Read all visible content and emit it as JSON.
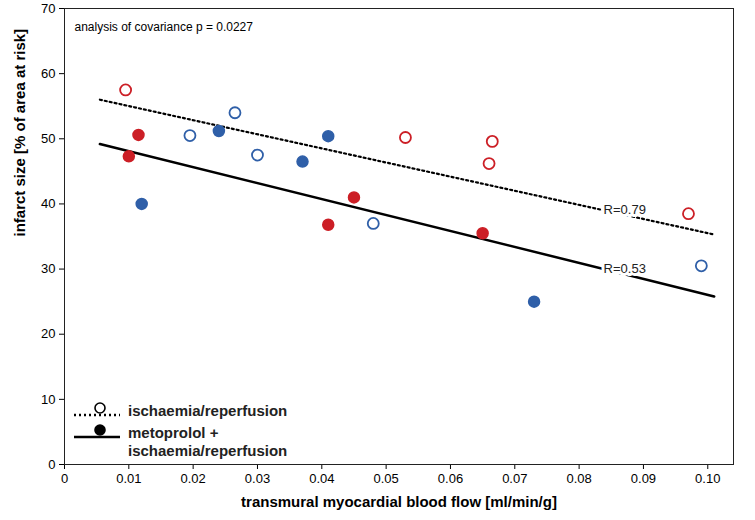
{
  "chart_data": {
    "type": "scatter",
    "annotation": "analysis of covariance p = 0.0227",
    "x_label": "transmural myocardial blood flow [ml/min/g]",
    "y_label": "infarct size [% of area at risk]",
    "xlim": [
      0,
      0.104
    ],
    "xticks": [
      0,
      0.01,
      0.02,
      0.03,
      0.04,
      0.05,
      0.06,
      0.07,
      0.08,
      0.09,
      {
        "value": 0.1,
        "label": "0.10"
      }
    ],
    "ylim": [
      0,
      70
    ],
    "yticks": [
      0,
      10,
      20,
      30,
      40,
      50,
      60,
      70
    ],
    "legend": "bottom-left",
    "series": [
      {
        "name": "ischaemia/reperfusion",
        "color": "#000000",
        "marker": "circle-open",
        "line_style": "dotted",
        "x": [
          0.0095,
          0.0195,
          0.0265,
          0.03,
          0.048,
          0.053,
          0.0665,
          0.066,
          0.097,
          0.099
        ],
        "values": [
          57.5,
          50.5,
          54,
          47.5,
          37,
          50.2,
          49.6,
          46.2,
          38.5,
          30.5
        ],
        "colors": [
          "#cc1f26",
          "#2f5fa8",
          "#2f5fa8",
          "#2f5fa8",
          "#2f5fa8",
          "#cc1f26",
          "#cc1f26",
          "#cc1f26",
          "#cc1f26",
          "#2f5fa8"
        ],
        "fit": {
          "x": [
            0.0055,
            0.101
          ],
          "values": [
            56,
            35.3
          ]
        },
        "r_label": "R=0.79"
      },
      {
        "name": "metoprolol + ischaemia/reperfusion",
        "color": "#000000",
        "marker": "circle",
        "line_style": "solid",
        "x": [
          0.0115,
          0.01,
          0.012,
          0.024,
          0.037,
          0.041,
          0.041,
          0.045,
          0.065,
          0.073
        ],
        "values": [
          50.6,
          47.3,
          40,
          51.2,
          46.5,
          50.4,
          36.8,
          41,
          35.5,
          25
        ],
        "colors": [
          "#cc1f26",
          "#cc1f26",
          "#2f5fa8",
          "#2f5fa8",
          "#2f5fa8",
          "#2f5fa8",
          "#cc1f26",
          "#cc1f26",
          "#cc1f26",
          "#2f5fa8"
        ],
        "fit": {
          "x": [
            0.0055,
            0.101
          ],
          "values": [
            49.2,
            25.8
          ]
        },
        "r_label": "R=0.53"
      }
    ]
  }
}
